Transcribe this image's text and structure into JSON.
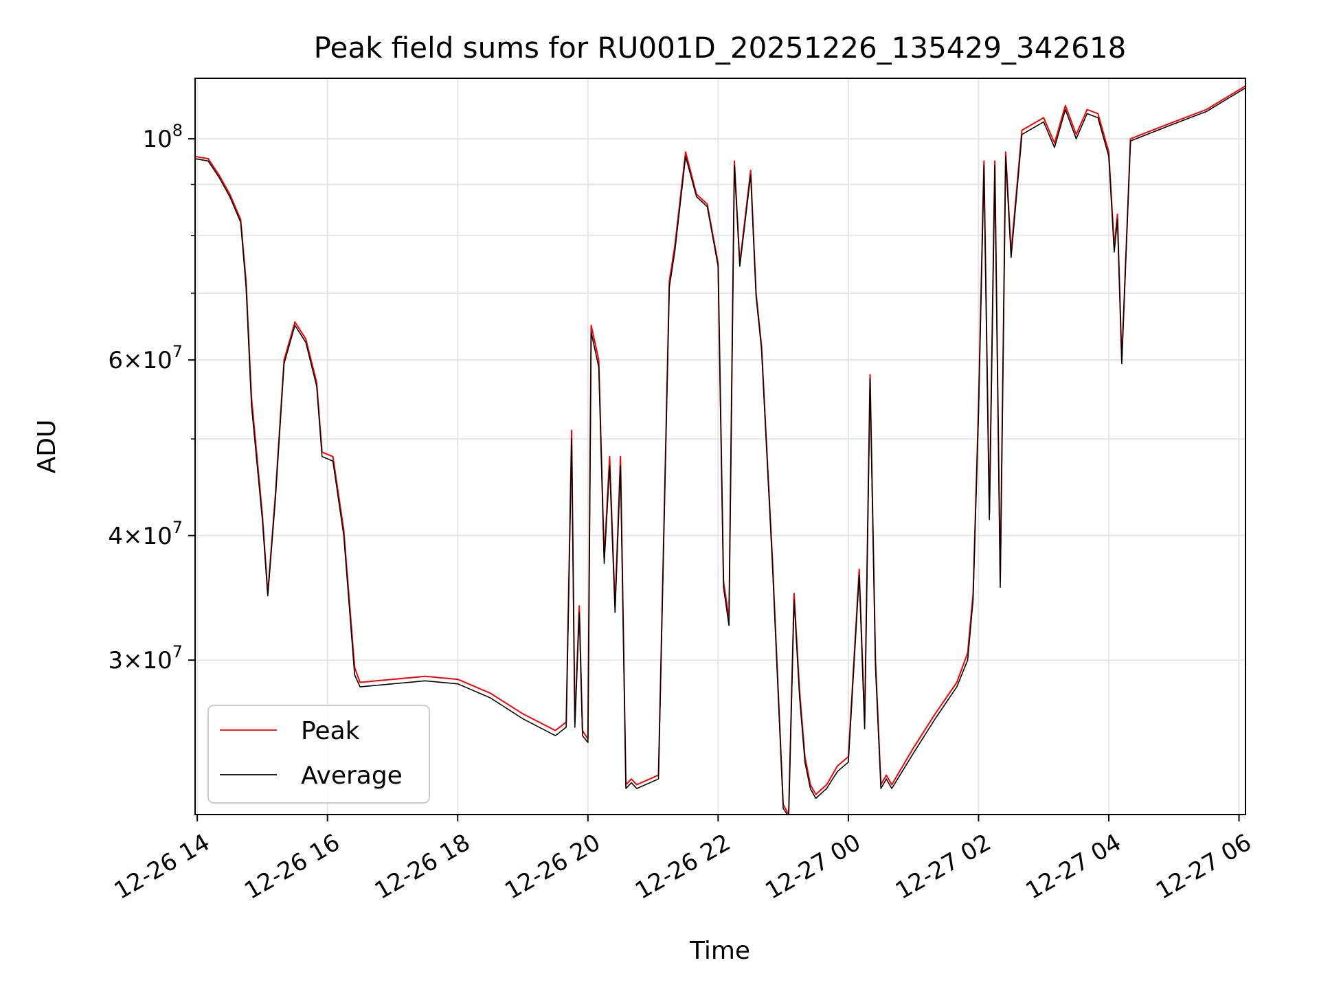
{
  "chart_data": {
    "type": "line",
    "title": "Peak field sums for RU001D_20251226_135429_342618",
    "xlabel": "Time",
    "ylabel": "ADU",
    "yscale": "log",
    "ylim": [
      21000000,
      115000000
    ],
    "xlim": [
      "2025-12-26 13:58",
      "2025-12-27 06:06"
    ],
    "grid": true,
    "legend_position": "lower-left",
    "x_ticks": [
      {
        "t": "2025-12-26 14:00",
        "label": "12-26 14"
      },
      {
        "t": "2025-12-26 16:00",
        "label": "12-26 16"
      },
      {
        "t": "2025-12-26 18:00",
        "label": "12-26 18"
      },
      {
        "t": "2025-12-26 20:00",
        "label": "12-26 20"
      },
      {
        "t": "2025-12-26 22:00",
        "label": "12-26 22"
      },
      {
        "t": "2025-12-27 00:00",
        "label": "12-27 00"
      },
      {
        "t": "2025-12-27 02:00",
        "label": "12-27 02"
      },
      {
        "t": "2025-12-27 04:00",
        "label": "12-27 04"
      },
      {
        "t": "2025-12-27 06:00",
        "label": "12-27 06"
      }
    ],
    "y_ticks": [
      {
        "value": 30000000,
        "mantissa": "3",
        "exp": "7"
      },
      {
        "value": 40000000,
        "mantissa": "4",
        "exp": "7"
      },
      {
        "value": 60000000,
        "mantissa": "6",
        "exp": "7"
      },
      {
        "value": 100000000,
        "mantissa": "",
        "exp": "8"
      }
    ],
    "y_minor_ticks": [
      50000000,
      70000000,
      80000000,
      90000000
    ],
    "colors": {
      "peak": "#ff0000",
      "average": "#000000"
    },
    "series": [
      {
        "name": "Peak",
        "x": [
          "2025-12-26 13:58",
          "2025-12-26 14:10",
          "2025-12-26 14:20",
          "2025-12-26 14:30",
          "2025-12-26 14:40",
          "2025-12-26 14:45",
          "2025-12-26 14:50",
          "2025-12-26 15:00",
          "2025-12-26 15:05",
          "2025-12-26 15:12",
          "2025-12-26 15:20",
          "2025-12-26 15:30",
          "2025-12-26 15:40",
          "2025-12-26 15:50",
          "2025-12-26 15:55",
          "2025-12-26 16:05",
          "2025-12-26 16:15",
          "2025-12-26 16:25",
          "2025-12-26 16:30",
          "2025-12-26 17:00",
          "2025-12-26 17:30",
          "2025-12-26 18:00",
          "2025-12-26 18:30",
          "2025-12-26 19:00",
          "2025-12-26 19:30",
          "2025-12-26 19:40",
          "2025-12-26 19:45",
          "2025-12-26 19:48",
          "2025-12-26 19:52",
          "2025-12-26 19:55",
          "2025-12-26 20:00",
          "2025-12-26 20:03",
          "2025-12-26 20:10",
          "2025-12-26 20:15",
          "2025-12-26 20:20",
          "2025-12-26 20:25",
          "2025-12-26 20:30",
          "2025-12-26 20:35",
          "2025-12-26 20:40",
          "2025-12-26 20:45",
          "2025-12-26 21:05",
          "2025-12-26 21:15",
          "2025-12-26 21:20",
          "2025-12-26 21:30",
          "2025-12-26 21:40",
          "2025-12-26 21:50",
          "2025-12-26 22:00",
          "2025-12-26 22:05",
          "2025-12-26 22:10",
          "2025-12-26 22:15",
          "2025-12-26 22:20",
          "2025-12-26 22:30",
          "2025-12-26 22:35",
          "2025-12-26 22:40",
          "2025-12-26 22:50",
          "2025-12-26 23:00",
          "2025-12-26 23:05",
          "2025-12-26 23:10",
          "2025-12-26 23:15",
          "2025-12-26 23:20",
          "2025-12-26 23:25",
          "2025-12-26 23:30",
          "2025-12-26 23:40",
          "2025-12-26 23:50",
          "2025-12-27 00:00",
          "2025-12-27 00:10",
          "2025-12-27 00:15",
          "2025-12-27 00:20",
          "2025-12-27 00:25",
          "2025-12-27 00:30",
          "2025-12-27 00:35",
          "2025-12-27 00:40",
          "2025-12-27 01:00",
          "2025-12-27 01:20",
          "2025-12-27 01:40",
          "2025-12-27 01:50",
          "2025-12-27 01:55",
          "2025-12-27 02:00",
          "2025-12-27 02:05",
          "2025-12-27 02:10",
          "2025-12-27 02:15",
          "2025-12-27 02:20",
          "2025-12-27 02:25",
          "2025-12-27 02:30",
          "2025-12-27 02:40",
          "2025-12-27 03:00",
          "2025-12-27 03:10",
          "2025-12-27 03:20",
          "2025-12-27 03:30",
          "2025-12-27 03:40",
          "2025-12-27 03:50",
          "2025-12-27 04:00",
          "2025-12-27 04:05",
          "2025-12-27 04:08",
          "2025-12-27 04:12",
          "2025-12-27 04:20",
          "2025-12-27 04:30",
          "2025-12-27 05:00",
          "2025-12-27 05:30",
          "2025-12-27 06:06"
        ],
        "y": [
          96000000,
          95500000,
          92000000,
          88000000,
          83000000,
          72000000,
          55000000,
          42000000,
          35000000,
          44000000,
          60000000,
          65500000,
          63000000,
          57000000,
          48500000,
          48000000,
          40500000,
          29500000,
          28500000,
          28700000,
          28900000,
          28700000,
          27800000,
          26500000,
          25500000,
          26000000,
          51000000,
          26000000,
          34000000,
          25500000,
          25000000,
          65000000,
          60000000,
          38000000,
          48000000,
          34000000,
          48000000,
          22500000,
          22800000,
          22500000,
          23000000,
          72000000,
          78000000,
          97000000,
          88000000,
          86000000,
          75000000,
          36000000,
          33000000,
          95000000,
          75000000,
          93000000,
          70000000,
          62000000,
          38000000,
          21500000,
          21000000,
          35000000,
          28000000,
          24000000,
          22500000,
          22000000,
          22500000,
          23500000,
          24000000,
          37000000,
          26000000,
          58000000,
          30000000,
          22500000,
          23000000,
          22500000,
          24500000,
          26500000,
          28500000,
          30500000,
          35000000,
          54000000,
          95000000,
          42000000,
          95000000,
          36000000,
          97000000,
          77000000,
          102000000,
          105000000,
          99000000,
          108000000,
          101000000,
          107000000,
          106000000,
          97000000,
          78000000,
          84000000,
          60000000,
          100000000,
          101000000,
          104000000,
          107000000,
          113000000
        ]
      },
      {
        "name": "Average",
        "x": [
          "2025-12-26 13:58",
          "2025-12-26 14:10",
          "2025-12-26 14:20",
          "2025-12-26 14:30",
          "2025-12-26 14:40",
          "2025-12-26 14:45",
          "2025-12-26 14:50",
          "2025-12-26 15:00",
          "2025-12-26 15:05",
          "2025-12-26 15:12",
          "2025-12-26 15:20",
          "2025-12-26 15:30",
          "2025-12-26 15:40",
          "2025-12-26 15:50",
          "2025-12-26 15:55",
          "2025-12-26 16:05",
          "2025-12-26 16:15",
          "2025-12-26 16:25",
          "2025-12-26 16:30",
          "2025-12-26 17:00",
          "2025-12-26 17:30",
          "2025-12-26 18:00",
          "2025-12-26 18:30",
          "2025-12-26 19:00",
          "2025-12-26 19:30",
          "2025-12-26 19:40",
          "2025-12-26 19:45",
          "2025-12-26 19:48",
          "2025-12-26 19:52",
          "2025-12-26 19:55",
          "2025-12-26 20:00",
          "2025-12-26 20:03",
          "2025-12-26 20:10",
          "2025-12-26 20:15",
          "2025-12-26 20:20",
          "2025-12-26 20:25",
          "2025-12-26 20:30",
          "2025-12-26 20:35",
          "2025-12-26 20:40",
          "2025-12-26 20:45",
          "2025-12-26 21:05",
          "2025-12-26 21:15",
          "2025-12-26 21:20",
          "2025-12-26 21:30",
          "2025-12-26 21:40",
          "2025-12-26 21:50",
          "2025-12-26 22:00",
          "2025-12-26 22:05",
          "2025-12-26 22:10",
          "2025-12-26 22:15",
          "2025-12-26 22:20",
          "2025-12-26 22:30",
          "2025-12-26 22:35",
          "2025-12-26 22:40",
          "2025-12-26 22:50",
          "2025-12-26 23:00",
          "2025-12-26 23:05",
          "2025-12-26 23:10",
          "2025-12-26 23:15",
          "2025-12-26 23:20",
          "2025-12-26 23:25",
          "2025-12-26 23:30",
          "2025-12-26 23:40",
          "2025-12-26 23:50",
          "2025-12-27 00:00",
          "2025-12-27 00:10",
          "2025-12-27 00:15",
          "2025-12-27 00:20",
          "2025-12-27 00:25",
          "2025-12-27 00:30",
          "2025-12-27 00:35",
          "2025-12-27 00:40",
          "2025-12-27 01:00",
          "2025-12-27 01:20",
          "2025-12-27 01:40",
          "2025-12-27 01:50",
          "2025-12-27 01:55",
          "2025-12-27 02:00",
          "2025-12-27 02:05",
          "2025-12-27 02:10",
          "2025-12-27 02:15",
          "2025-12-27 02:20",
          "2025-12-27 02:25",
          "2025-12-27 02:30",
          "2025-12-27 02:40",
          "2025-12-27 03:00",
          "2025-12-27 03:10",
          "2025-12-27 03:20",
          "2025-12-27 03:30",
          "2025-12-27 03:40",
          "2025-12-27 03:50",
          "2025-12-27 04:00",
          "2025-12-27 04:05",
          "2025-12-27 04:08",
          "2025-12-27 04:12",
          "2025-12-27 04:20",
          "2025-12-27 04:30",
          "2025-12-27 05:00",
          "2025-12-27 05:30",
          "2025-12-27 06:06"
        ],
        "y": [
          95500000,
          95000000,
          91500000,
          87500000,
          82500000,
          71000000,
          54000000,
          41500000,
          34800000,
          43500000,
          59500000,
          65000000,
          62500000,
          56500000,
          48000000,
          47500000,
          40000000,
          29000000,
          28200000,
          28400000,
          28600000,
          28400000,
          27500000,
          26200000,
          25200000,
          25700000,
          50000000,
          25700000,
          33500000,
          25200000,
          24800000,
          64000000,
          59000000,
          37500000,
          47000000,
          33500000,
          47000000,
          22300000,
          22600000,
          22300000,
          22800000,
          71000000,
          77000000,
          96000000,
          87500000,
          85500000,
          74500000,
          35500000,
          32500000,
          94000000,
          74500000,
          92000000,
          69500000,
          61500000,
          37500000,
          21300000,
          20900000,
          34500000,
          27600000,
          23700000,
          22300000,
          21800000,
          22300000,
          23200000,
          23700000,
          36500000,
          25600000,
          57500000,
          29500000,
          22300000,
          22800000,
          22300000,
          24200000,
          26200000,
          28200000,
          30000000,
          34500000,
          53000000,
          94000000,
          41500000,
          94000000,
          35500000,
          96000000,
          76000000,
          101000000,
          104000000,
          98000000,
          107000000,
          100000000,
          106000000,
          105000000,
          96000000,
          77000000,
          83000000,
          59500000,
          99500000,
          100500000,
          103500000,
          106500000,
          112500000
        ]
      }
    ]
  }
}
